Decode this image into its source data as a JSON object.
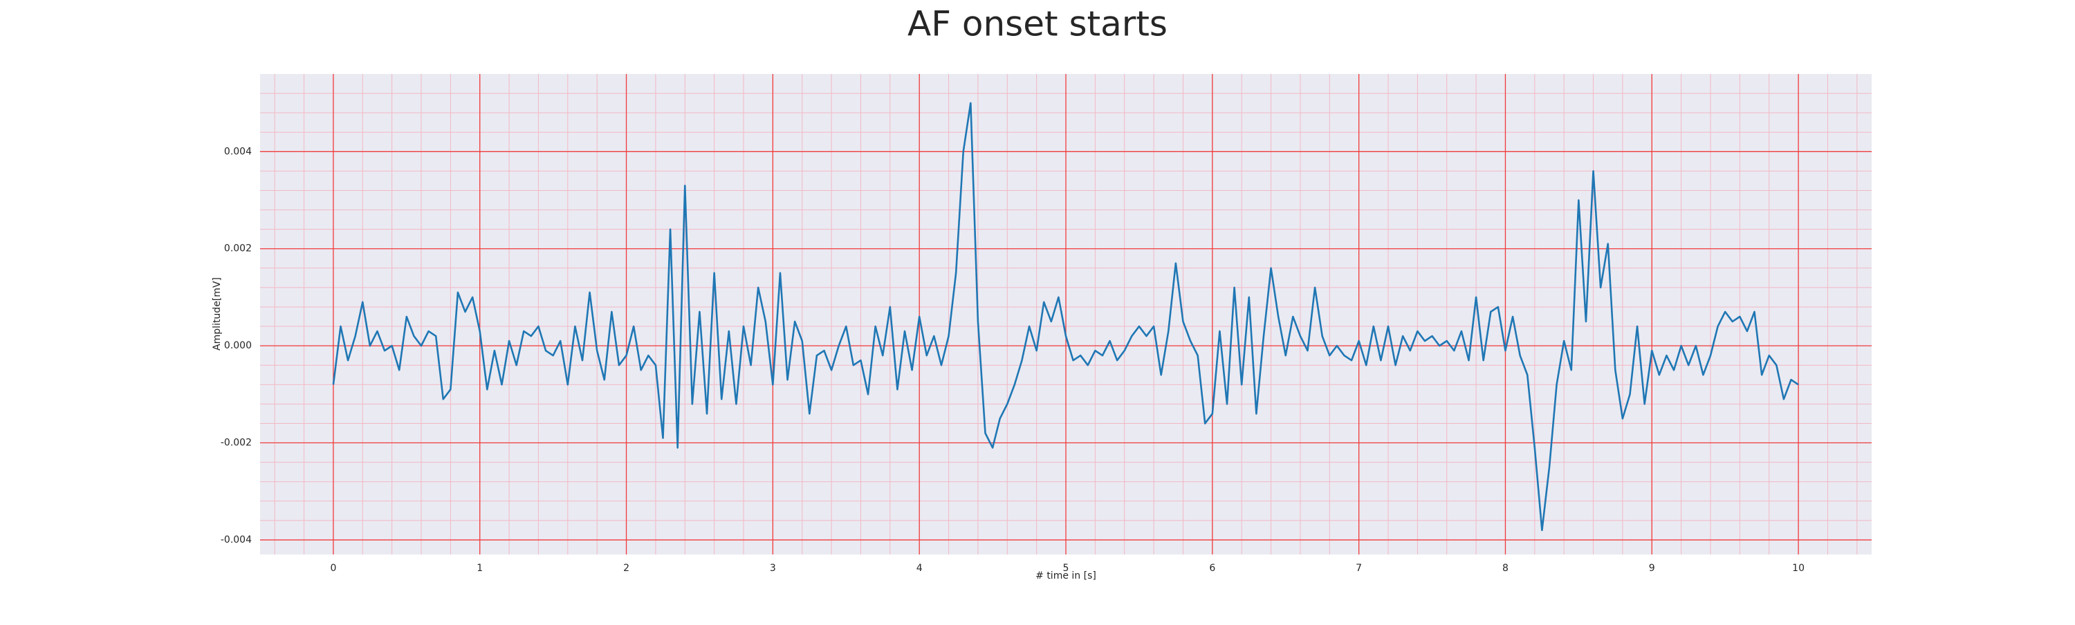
{
  "chart_data": {
    "type": "line",
    "title": "AF onset starts",
    "x_label": "# time in [s]",
    "y_label": "Amplitude[mV]",
    "xlim": [
      -0.5,
      10.5
    ],
    "ylim": [
      -0.0043,
      0.0056
    ],
    "xticks": [
      0,
      1,
      2,
      3,
      4,
      5,
      6,
      7,
      8,
      9,
      10
    ],
    "yticks": [
      -0.004,
      -0.002,
      {
        "value": 0,
        "label": "0.000"
      },
      0.002,
      0.004
    ],
    "grid": true,
    "minor_grid": true,
    "grid_color": "#f03c3c",
    "minor_grid_color": "#f2b8c4",
    "background": "#eaeaf2",
    "x": [
      0,
      0.05,
      0.1,
      0.15,
      0.2,
      0.25,
      0.3,
      0.35,
      0.4,
      0.45,
      0.5,
      0.55,
      0.6,
      0.65,
      0.7,
      0.75,
      0.8,
      0.85,
      0.9,
      0.95,
      1,
      1.05,
      1.1,
      1.15,
      1.2,
      1.25,
      1.3,
      1.35,
      1.4,
      1.45,
      1.5,
      1.55,
      1.6,
      1.65,
      1.7,
      1.75,
      1.8,
      1.85,
      1.9,
      1.95,
      2,
      2.05,
      2.1,
      2.15,
      2.2,
      2.25,
      2.3,
      2.35,
      2.4,
      2.45,
      2.5,
      2.55,
      2.6,
      2.65,
      2.7,
      2.75,
      2.8,
      2.85,
      2.9,
      2.95,
      3,
      3.05,
      3.1,
      3.15,
      3.2,
      3.25,
      3.3,
      3.35,
      3.4,
      3.45,
      3.5,
      3.55,
      3.6,
      3.65,
      3.7,
      3.75,
      3.8,
      3.85,
      3.9,
      3.95,
      4,
      4.05,
      4.1,
      4.15,
      4.2,
      4.25,
      4.3,
      4.35,
      4.4,
      4.45,
      4.5,
      4.55,
      4.6,
      4.65,
      4.7,
      4.75,
      4.8,
      4.85,
      4.9,
      4.95,
      5,
      5.05,
      5.1,
      5.15,
      5.2,
      5.25,
      5.3,
      5.35,
      5.4,
      5.45,
      5.5,
      5.55,
      5.6,
      5.65,
      5.7,
      5.75,
      5.8,
      5.85,
      5.9,
      5.95,
      6,
      6.05,
      6.1,
      6.15,
      6.2,
      6.25,
      6.3,
      6.35,
      6.4,
      6.45,
      6.5,
      6.55,
      6.6,
      6.65,
      6.7,
      6.75,
      6.8,
      6.85,
      6.9,
      6.95,
      7,
      7.05,
      7.1,
      7.15,
      7.2,
      7.25,
      7.3,
      7.35,
      7.4,
      7.45,
      7.5,
      7.55,
      7.6,
      7.65,
      7.7,
      7.75,
      7.8,
      7.85,
      7.9,
      7.95,
      8,
      8.05,
      8.1,
      8.15,
      8.2,
      8.25,
      8.3,
      8.35,
      8.4,
      8.45,
      8.5,
      8.55,
      8.6,
      8.65,
      8.7,
      8.75,
      8.8,
      8.85,
      8.9,
      8.95,
      9,
      9.05,
      9.1,
      9.15,
      9.2,
      9.25,
      9.3,
      9.35,
      9.4,
      9.45,
      9.5,
      9.55,
      9.6,
      9.65,
      9.7,
      9.75,
      9.8,
      9.85,
      9.9,
      9.95,
      10
    ],
    "series": [
      {
        "color": "#1f77b4",
        "values": [
          -0.0008,
          0.0004,
          -0.0003,
          0.0002,
          0.0009,
          0.0,
          0.0003,
          -0.0001,
          0.0,
          -0.0005,
          0.0006,
          0.0002,
          0.0,
          0.0003,
          0.0002,
          -0.0011,
          -0.0009,
          0.0011,
          0.0007,
          0.001,
          0.0003,
          -0.0009,
          -0.0001,
          -0.0008,
          0.0001,
          -0.0004,
          0.0003,
          0.0002,
          0.0004,
          -0.0001,
          -0.0002,
          0.0001,
          -0.0008,
          0.0004,
          -0.0003,
          0.0011,
          -0.0001,
          -0.0007,
          0.0007,
          -0.0004,
          -0.0002,
          0.0004,
          -0.0005,
          -0.0002,
          -0.0004,
          -0.0019,
          0.0024,
          -0.0021,
          0.0033,
          -0.0012,
          0.0007,
          -0.0014,
          0.0015,
          -0.0011,
          0.0003,
          -0.0012,
          0.0004,
          -0.0004,
          0.0012,
          0.0005,
          -0.0008,
          0.0015,
          -0.0007,
          0.0005,
          0.0001,
          -0.0014,
          -0.0002,
          -0.0001,
          -0.0005,
          0.0,
          0.0004,
          -0.0004,
          -0.0003,
          -0.001,
          0.0004,
          -0.0002,
          0.0008,
          -0.0009,
          0.0003,
          -0.0005,
          0.0006,
          -0.0002,
          0.0002,
          -0.0004,
          0.0002,
          0.0015,
          0.004,
          0.005,
          0.0005,
          -0.0018,
          -0.0021,
          -0.0015,
          -0.0012,
          -0.0008,
          -0.0003,
          0.0004,
          -0.0001,
          0.0009,
          0.0005,
          0.001,
          0.0002,
          -0.0003,
          -0.0002,
          -0.0004,
          -0.0001,
          -0.0002,
          0.0001,
          -0.0003,
          -0.0001,
          0.0002,
          0.0004,
          0.0002,
          0.0004,
          -0.0006,
          0.0003,
          0.0017,
          0.0005,
          0.0001,
          -0.0002,
          -0.0016,
          -0.0014,
          0.0003,
          -0.0012,
          0.0012,
          -0.0008,
          0.001,
          -0.0014,
          0.0002,
          0.0016,
          0.0006,
          -0.0002,
          0.0006,
          0.0002,
          -0.0001,
          0.0012,
          0.0002,
          -0.0002,
          0.0,
          -0.0002,
          -0.0003,
          0.0001,
          -0.0004,
          0.0004,
          -0.0003,
          0.0004,
          -0.0004,
          0.0002,
          -0.0001,
          0.0003,
          0.0001,
          0.0002,
          0.0,
          0.0001,
          -0.0001,
          0.0003,
          -0.0003,
          0.001,
          -0.0003,
          0.0007,
          0.0008,
          -0.0001,
          0.0006,
          -0.0002,
          -0.0006,
          -0.0021,
          -0.0038,
          -0.0025,
          -0.0008,
          0.0001,
          -0.0005,
          0.003,
          0.0005,
          0.0036,
          0.0012,
          0.0021,
          -0.0005,
          -0.0015,
          -0.001,
          0.0004,
          -0.0012,
          -0.0001,
          -0.0006,
          -0.0002,
          -0.0005,
          0.0,
          -0.0004,
          0.0,
          -0.0006,
          -0.0002,
          0.0004,
          0.0007,
          0.0005,
          0.0006,
          0.0003,
          0.0007,
          -0.0006,
          -0.0002,
          -0.0004,
          -0.0011,
          -0.0007,
          -0.0008
        ]
      }
    ]
  }
}
